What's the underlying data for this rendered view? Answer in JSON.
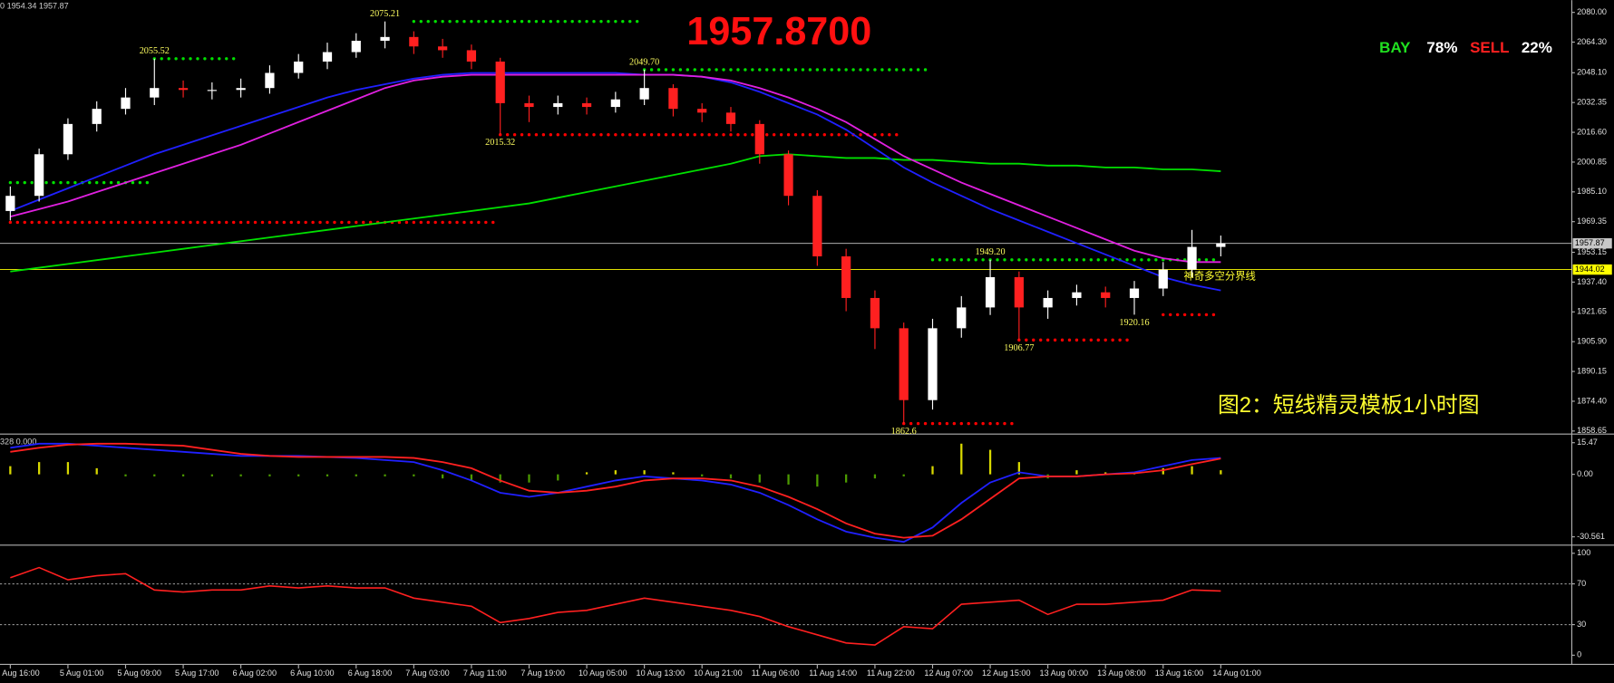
{
  "chart_data": [
    {
      "type": "candlestick",
      "title": "1957.8700",
      "info": "0 1954.34 1957.87",
      "caption": "图2：短线精灵模板1小时图",
      "signal": {
        "buy": "BAY",
        "buy_pct": "78%",
        "sell": "SELL",
        "sell_pct": "22%"
      },
      "categories": [
        "Aug 16:00",
        null,
        "5 Aug 01:00",
        null,
        "5 Aug 09:00",
        null,
        "5 Aug 17:00",
        null,
        "6 Aug 02:00",
        null,
        "6 Aug 10:00",
        null,
        "6 Aug 18:00",
        null,
        "7 Aug 03:00",
        null,
        "7 Aug 11:00",
        null,
        "7 Aug 19:00",
        null,
        "10 Aug 05:00",
        null,
        "10 Aug 13:00",
        null,
        "10 Aug 21:00",
        null,
        "11 Aug 06:00",
        null,
        "11 Aug 14:00",
        null,
        "11 Aug 22:00",
        null,
        "12 Aug 07:00",
        null,
        "12 Aug 15:00",
        null,
        "13 Aug 00:00",
        null,
        "13 Aug 08:00",
        null,
        "13 Aug 16:00",
        null,
        "14 Aug 01:00"
      ],
      "open": [
        1975,
        1983,
        2005,
        2021,
        2029,
        2035,
        2040,
        2039,
        2039,
        2040,
        2048,
        2054,
        2059,
        2065,
        2067,
        2062,
        2060,
        2054,
        2032,
        2030,
        2032,
        2030,
        2034,
        2040,
        2029,
        2027,
        2021,
        2005,
        1983,
        1951,
        1929,
        1913,
        1875,
        1913,
        1924,
        1940,
        1924,
        1929,
        1932,
        1929,
        1934,
        1944,
        1956
      ],
      "high": [
        1988,
        2008,
        2024,
        2033,
        2040,
        2055.52,
        2044,
        2043,
        2045,
        2052,
        2058,
        2064,
        2069,
        2075.21,
        2070,
        2066,
        2063,
        2056,
        2036,
        2036,
        2035,
        2038,
        2049.7,
        2042,
        2032,
        2030,
        2023,
        2007,
        1986,
        1955,
        1933,
        1916,
        1918,
        1930,
        1949.2,
        1943,
        1933,
        1936,
        1935,
        1938,
        1948,
        1965,
        1962
      ],
      "low": [
        1970,
        1980,
        2002,
        2017,
        2026,
        2031,
        2035,
        2034,
        2035,
        2037,
        2045,
        2050,
        2056,
        2061,
        2058,
        2056,
        2050,
        2015.32,
        2022,
        2026,
        2026,
        2027,
        2031,
        2025,
        2022,
        2017,
        2000,
        1978,
        1946,
        1922,
        1902,
        1862.6,
        1870,
        1908,
        1920,
        1906.77,
        1918,
        1925,
        1924,
        1920.16,
        1930,
        1940,
        1951
      ],
      "close": [
        1983,
        2005,
        2021,
        2029,
        2035,
        2040,
        2039,
        2039,
        2040,
        2048,
        2054,
        2059,
        2065,
        2067,
        2062,
        2060,
        2054,
        2032,
        2030,
        2032,
        2030,
        2034,
        2040,
        2029,
        2027,
        2021,
        2005,
        1983,
        1951,
        1929,
        1913,
        1875,
        1913,
        1924,
        1940,
        1924,
        1929,
        1932,
        1929,
        1934,
        1944,
        1956,
        1957.87
      ],
      "up_color": "#ffffff",
      "down_color": "#ff2020",
      "series": [
        {
          "color": "#00e000",
          "values": [
            1943,
            1945,
            1947,
            1949,
            1951,
            1953,
            1955,
            1957,
            1959,
            1961,
            1963,
            1965,
            1967,
            1969,
            1971,
            1973,
            1975,
            1977,
            1979,
            1982,
            1985,
            1988,
            1991,
            1994,
            1997,
            2000,
            2004,
            2005,
            2004,
            2003,
            2003,
            2002,
            2002,
            2001,
            2000,
            2000,
            1999,
            1999,
            1998,
            1998,
            1997,
            1997,
            1996
          ]
        },
        {
          "color": "#2020ff",
          "values": [
            1975,
            1981,
            1987,
            1993,
            1999,
            2005,
            2010,
            2015,
            2020,
            2025,
            2030,
            2035,
            2039,
            2042,
            2045,
            2047,
            2048,
            2048,
            2048,
            2048,
            2048,
            2048,
            2047,
            2047,
            2046,
            2043,
            2038,
            2032,
            2026,
            2018,
            2008,
            1998,
            1990,
            1983,
            1976,
            1970,
            1964,
            1958,
            1952,
            1946,
            1940,
            1936,
            1933
          ]
        },
        {
          "color": "#e020e0",
          "values": [
            1972,
            1976,
            1980,
            1985,
            1990,
            1995,
            2000,
            2005,
            2010,
            2016,
            2022,
            2028,
            2034,
            2040,
            2044,
            2046,
            2047,
            2047,
            2047,
            2047,
            2047,
            2047,
            2047,
            2047,
            2046,
            2044,
            2040,
            2035,
            2029,
            2022,
            2013,
            2004,
            1997,
            1990,
            1984,
            1978,
            1972,
            1966,
            1960,
            1954,
            1950,
            1948,
            1948
          ]
        }
      ],
      "levels": [
        {
          "value": 2075.21,
          "color": "#00e000",
          "from": 14,
          "to": 22
        },
        {
          "value": 2055.52,
          "color": "#00e000",
          "from": 5,
          "to": 8
        },
        {
          "value": 2049.7,
          "color": "#00e000",
          "from": 22,
          "to": 32
        },
        {
          "value": 1990,
          "color": "#00e000",
          "from": 0,
          "to": 5
        },
        {
          "value": 1969,
          "color": "#ff0000",
          "from": 0,
          "to": 17
        },
        {
          "value": 2015.32,
          "color": "#ff0000",
          "from": 17,
          "to": 31
        },
        {
          "value": 1949.2,
          "color": "#00e000",
          "from": 32,
          "to": 42
        },
        {
          "value": 1906.77,
          "color": "#ff0000",
          "from": 35,
          "to": 39
        },
        {
          "value": 1920.16,
          "color": "#ff0000",
          "from": 40,
          "to": 42
        },
        {
          "value": 1862.6,
          "color": "#ff0000",
          "from": 31,
          "to": 35
        }
      ],
      "annotations": [
        {
          "text": "2075.21",
          "at": 13,
          "side": "high"
        },
        {
          "text": "2055.52",
          "at": 5,
          "side": "high"
        },
        {
          "text": "2049.70",
          "at": 22,
          "side": "high"
        },
        {
          "text": "2015.32",
          "at": 17,
          "side": "low"
        },
        {
          "text": "1949.20",
          "at": 34,
          "side": "high"
        },
        {
          "text": "1906.77",
          "at": 35,
          "side": "low"
        },
        {
          "text": "1920.16",
          "at": 39,
          "side": "low"
        },
        {
          "text": "1862.6",
          "at": 31,
          "side": "low"
        }
      ],
      "hlines": [
        {
          "value": 1957.87,
          "color": "#c8c8c8"
        },
        {
          "value": 1944.02,
          "color": "#ffff00",
          "label": "神奇多空分界线"
        }
      ],
      "ylim": [
        1857.6,
        2086.5
      ],
      "yticks": [
        {
          "value": 2080,
          "label": "2080.00"
        },
        {
          "value": 2064.3,
          "label": "2064.30"
        },
        {
          "value": 2048.1,
          "label": "2048.10"
        },
        2032.35,
        {
          "value": 2016.6,
          "label": "2016.60"
        },
        2000.85,
        {
          "value": 1985.1,
          "label": "1985.10"
        },
        1969.35,
        1953.15,
        {
          "value": 1937.4,
          "label": "1937.40"
        },
        1921.65,
        {
          "value": 1905.9,
          "label": "1905.90"
        },
        1890.15,
        {
          "value": 1874.4,
          "label": "1874.40"
        },
        1858.65
      ]
    },
    {
      "type": "macd",
      "info": "328 0.000",
      "histogram": [
        4,
        6,
        6,
        3,
        -1,
        -1,
        -1,
        -1,
        -1,
        -1,
        -1,
        -1,
        -1,
        -1,
        -1,
        -2,
        -3,
        -4,
        -4,
        -3,
        1,
        2,
        2,
        1,
        -1,
        -2,
        -4,
        -5,
        -6,
        -4,
        -2,
        -1,
        4,
        15,
        12,
        6,
        -2,
        2,
        1,
        1,
        3,
        4,
        2
      ],
      "up_color": "#d8d800",
      "down_color": "#4c9a00",
      "series": [
        {
          "color": "#2020ff",
          "values": [
            13,
            15,
            15,
            14,
            13,
            12,
            11,
            10,
            9,
            9,
            9,
            8.5,
            8,
            7,
            6,
            2,
            -3,
            -9,
            -11,
            -9,
            -6,
            -3,
            -1,
            -2,
            -3,
            -5,
            -9,
            -15,
            -22,
            -28,
            -31,
            -33,
            -26,
            -14,
            -4,
            1,
            -1,
            -1,
            0,
            1,
            4,
            7,
            8
          ]
        },
        {
          "color": "#ff2020",
          "values": [
            11,
            13,
            14.5,
            15,
            15,
            14.5,
            14,
            12,
            10,
            9,
            8.5,
            8.5,
            8.5,
            8.5,
            8,
            6,
            3,
            -3,
            -8,
            -9,
            -8,
            -6,
            -3,
            -2,
            -2,
            -3,
            -6,
            -11,
            -17,
            -24,
            -29,
            -31,
            -30,
            -22,
            -12,
            -2,
            -1,
            -1,
            0,
            0.5,
            2,
            5,
            7.7
          ]
        }
      ],
      "ylim": [
        -33.6,
        18.7
      ],
      "yticks": [
        15.47,
        {
          "value": 0,
          "label": "0.00"
        },
        -30.561
      ]
    },
    {
      "type": "line",
      "series": [
        {
          "color": "#ff2020",
          "values": [
            76,
            86,
            74,
            78,
            80,
            64,
            62,
            64,
            64,
            68,
            66,
            68,
            66,
            66,
            56,
            52,
            48,
            32,
            36,
            42,
            44,
            50,
            56,
            52,
            48,
            44,
            38,
            28,
            20,
            12,
            10,
            28,
            26,
            50,
            52,
            54,
            40,
            50,
            50,
            52,
            54,
            64,
            63
          ]
        }
      ],
      "levels": [
        70,
        30
      ],
      "ylim": [
        -9,
        106
      ],
      "yticks": [
        100,
        70,
        30,
        0
      ]
    }
  ]
}
